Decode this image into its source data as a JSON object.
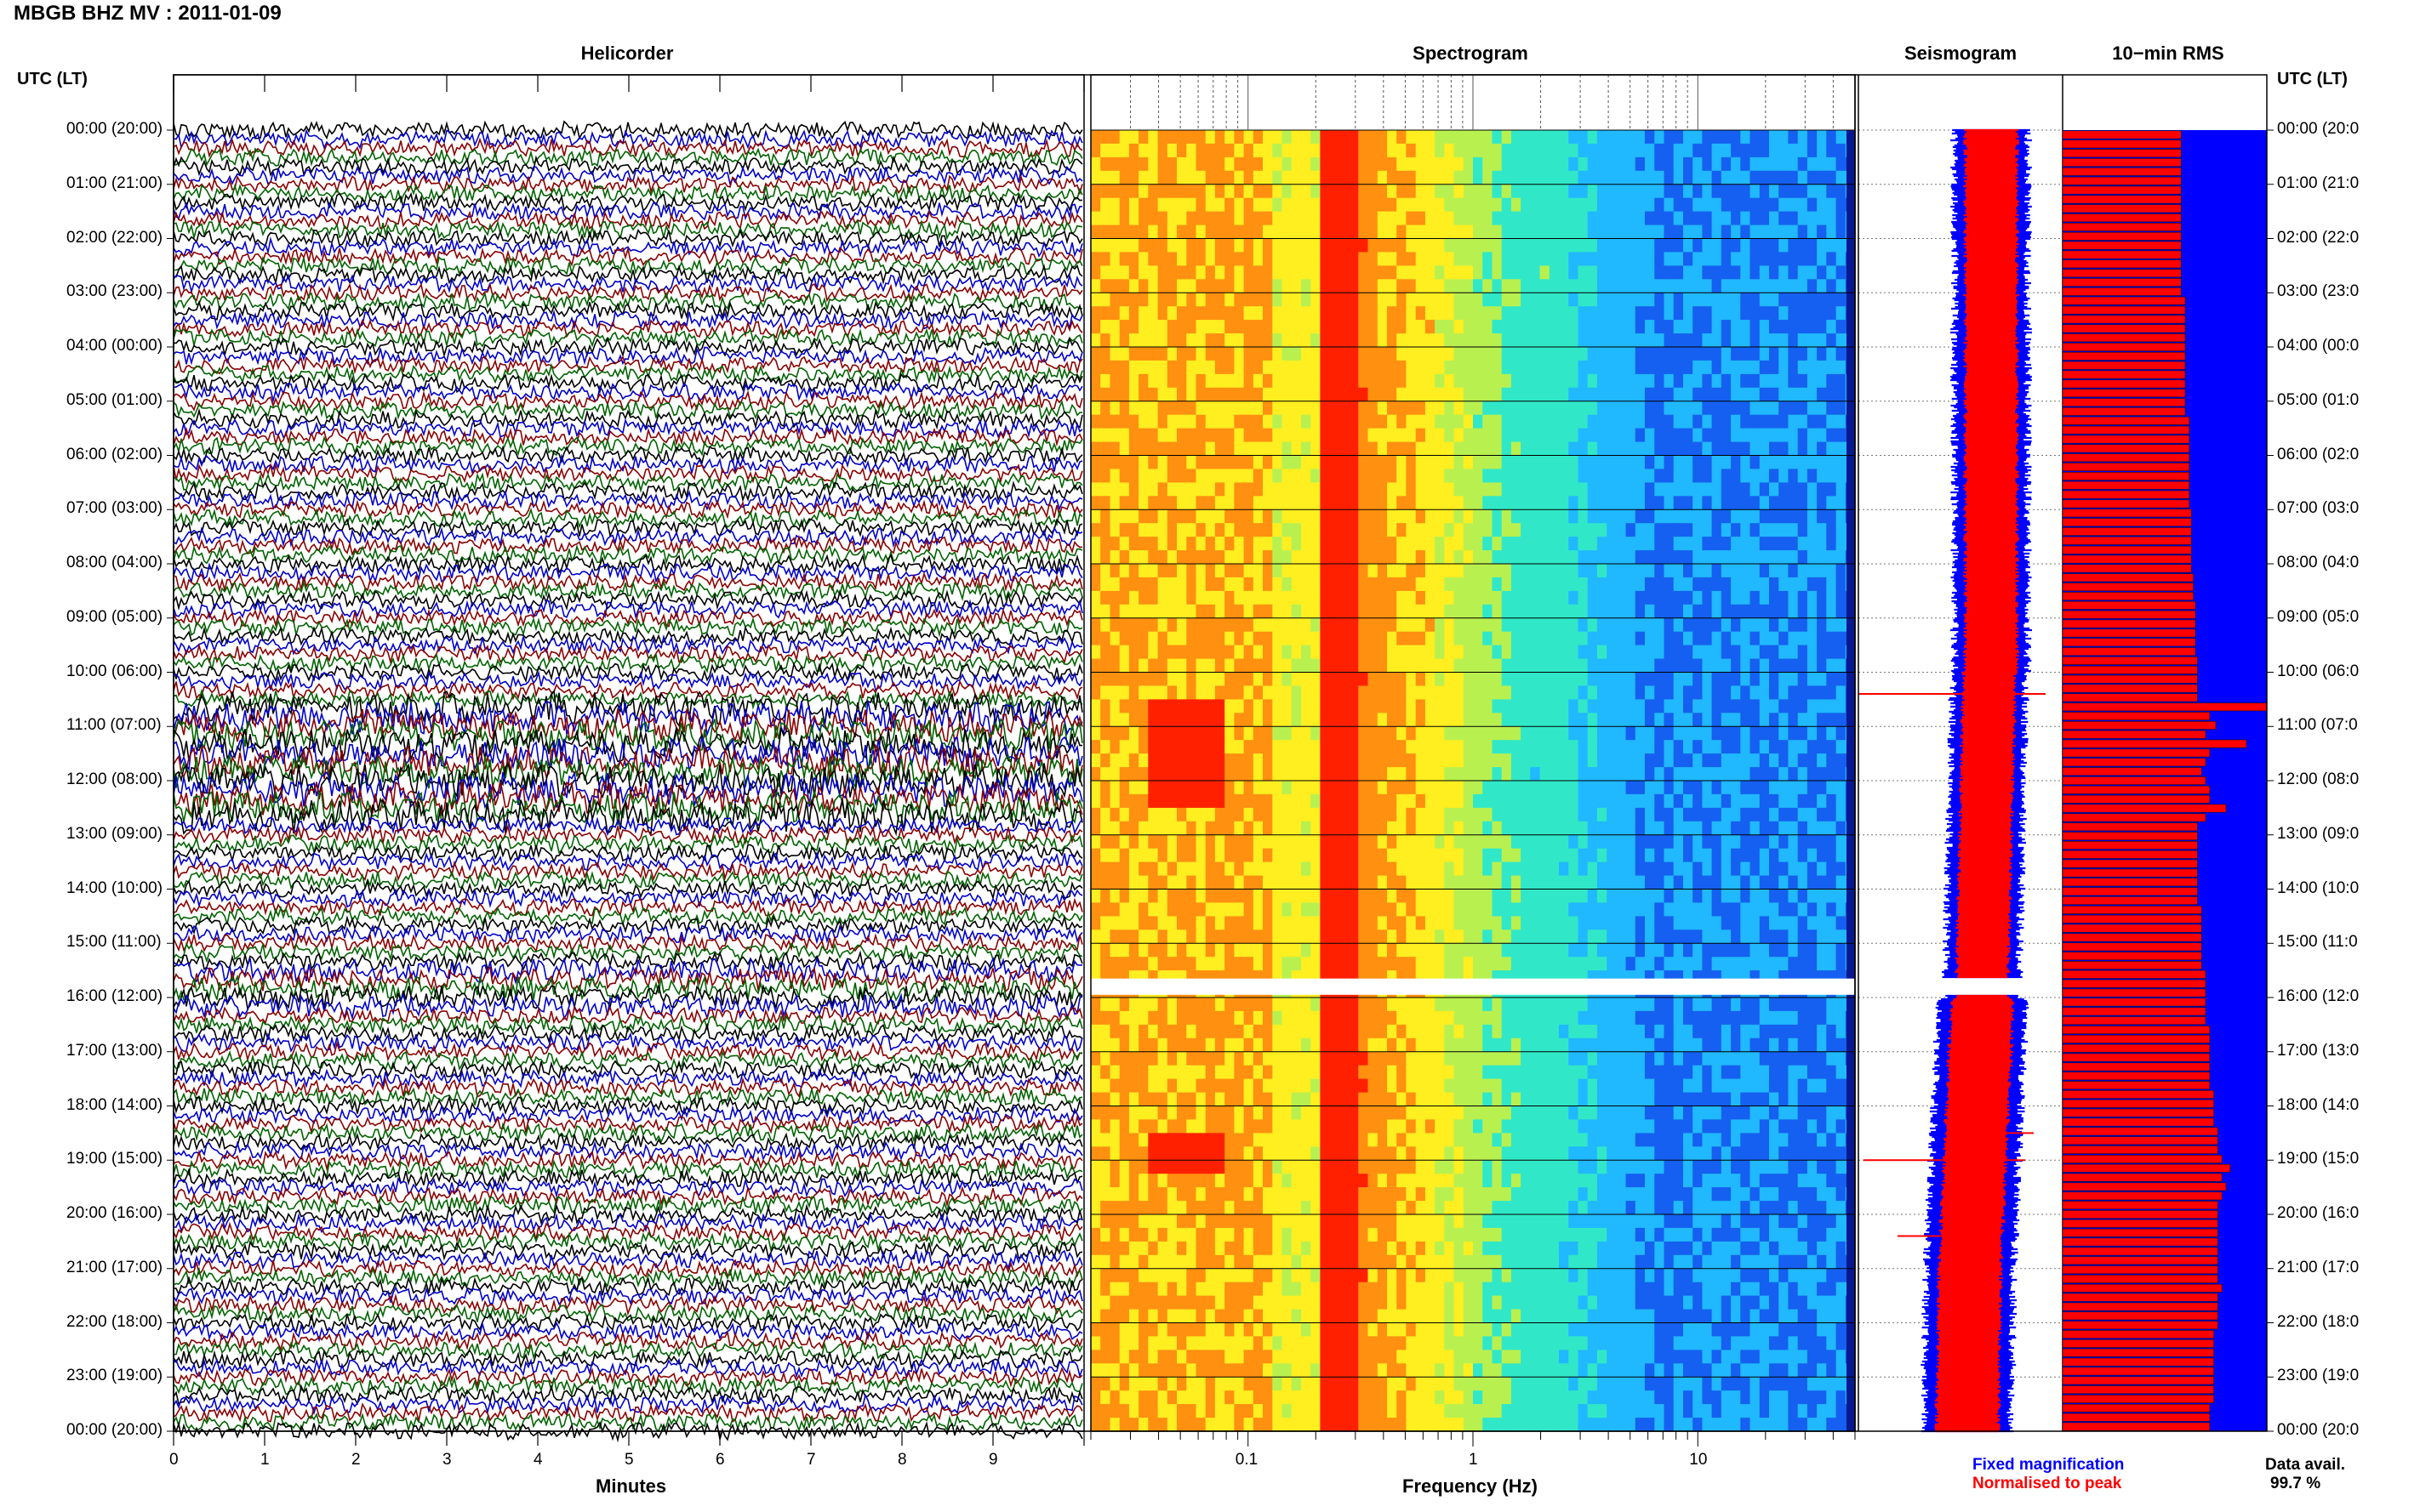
{
  "title": "MBGB BHZ MV : 2011-01-09",
  "panels": {
    "helicorder": "Helicorder",
    "spectrogram": "Spectrogram",
    "seismogram": "Seismogram",
    "rms": "10−min RMS"
  },
  "time_axis_header": "UTC (LT)",
  "time_labels": [
    "00:00 (20:00)",
    "01:00 (21:00)",
    "02:00 (22:00)",
    "03:00 (23:00)",
    "04:00 (00:00)",
    "05:00 (01:00)",
    "06:00 (02:00)",
    "07:00 (03:00)",
    "08:00 (04:00)",
    "09:00 (05:00)",
    "10:00 (06:00)",
    "11:00 (07:00)",
    "12:00 (08:00)",
    "13:00 (09:00)",
    "14:00 (10:00)",
    "15:00 (11:00)",
    "16:00 (12:00)",
    "17:00 (13:00)",
    "18:00 (14:00)",
    "19:00 (15:00)",
    "20:00 (16:00)",
    "21:00 (17:00)",
    "22:00 (18:00)",
    "23:00 (19:00)",
    "00:00 (20:00)"
  ],
  "right_time_labels": [
    "00:00 (20:0",
    "01:00 (21:0",
    "02:00 (22:0",
    "03:00 (23:0",
    "04:00 (00:0",
    "05:00 (01:0",
    "06:00 (02:0",
    "07:00 (03:0",
    "08:00 (04:0",
    "09:00 (05:0",
    "10:00 (06:0",
    "11:00 (07:0",
    "12:00 (08:0",
    "13:00 (09:0",
    "14:00 (10:0",
    "15:00 (11:0",
    "16:00 (12:0",
    "17:00 (13:0",
    "18:00 (14:0",
    "19:00 (15:0",
    "20:00 (16:0",
    "21:00 (17:0",
    "22:00 (18:0",
    "23:00 (19:0",
    "00:00 (20:0"
  ],
  "helicorder_axis": {
    "label": "Minutes",
    "ticks": [
      "0",
      "1",
      "2",
      "3",
      "4",
      "5",
      "6",
      "7",
      "8",
      "9"
    ],
    "range": [
      0,
      10
    ]
  },
  "spectrogram_axis": {
    "label": "Frequency (Hz)",
    "scale": "log",
    "ticks": [
      "0.1",
      "1",
      "10"
    ],
    "range": [
      0.02,
      50
    ]
  },
  "legend": {
    "fixed": "Fixed magnification",
    "normalised": "Normalised to peak",
    "fixed_color": "#0000ff",
    "normalised_color": "#ff0000"
  },
  "data_avail": {
    "label": "Data avail.",
    "value": "99.7 %"
  },
  "colors": {
    "trace_cycle": [
      "#000000",
      "#0000cc",
      "#8b0000",
      "#006400"
    ],
    "rms_bar": "#ff0000",
    "rms_background": "#0000ff",
    "spectro_low": "#0a2ecc",
    "spectro_high": "#ff2000"
  },
  "chart_data": [
    {
      "type": "heatmap",
      "name_hint": "spectrogram",
      "x_scale": "log",
      "xlim": [
        0.02,
        50
      ],
      "ylim_hours_utc": [
        0,
        24
      ],
      "data_gap_hours": [
        15.65,
        15.95
      ],
      "peak_band_hz": [
        0.2,
        0.3
      ],
      "tremor_episodes": [
        {
          "start_hour": 10.4,
          "end_hour": 12.6,
          "freq_hz": [
            0.035,
            0.07
          ]
        },
        {
          "start_hour": 18.3,
          "end_hour": 19.3,
          "freq_hz": [
            0.035,
            0.07
          ]
        }
      ]
    },
    {
      "type": "bar",
      "name_hint": "10-min RMS",
      "interval_minutes": 10,
      "values_rel": [
        0.58,
        0.58,
        0.58,
        0.58,
        0.58,
        0.58,
        0.58,
        0.58,
        0.58,
        0.58,
        0.58,
        0.58,
        0.58,
        0.58,
        0.58,
        0.58,
        0.58,
        0.58,
        0.6,
        0.6,
        0.6,
        0.6,
        0.6,
        0.6,
        0.6,
        0.6,
        0.6,
        0.6,
        0.6,
        0.6,
        0.6,
        0.62,
        0.62,
        0.62,
        0.62,
        0.62,
        0.62,
        0.62,
        0.62,
        0.62,
        0.62,
        0.63,
        0.63,
        0.63,
        0.63,
        0.63,
        0.63,
        0.63,
        0.64,
        0.64,
        0.64,
        0.65,
        0.65,
        0.65,
        0.65,
        0.65,
        0.65,
        0.66,
        0.66,
        0.66,
        0.66,
        0.66,
        1.0,
        0.72,
        0.75,
        0.7,
        0.9,
        0.72,
        0.7,
        0.68,
        0.7,
        0.72,
        0.72,
        0.8,
        0.7,
        0.66,
        0.66,
        0.66,
        0.66,
        0.66,
        0.66,
        0.66,
        0.66,
        0.66,
        0.68,
        0.68,
        0.68,
        0.68,
        0.68,
        0.68,
        0.68,
        0.7,
        0.7,
        0.7,
        0.7,
        0.7,
        0.7,
        0.72,
        0.72,
        0.72,
        0.72,
        0.72,
        0.72,
        0.72,
        0.74,
        0.74,
        0.74,
        0.74,
        0.76,
        0.76,
        0.76,
        0.78,
        0.82,
        0.78,
        0.8,
        0.78,
        0.76,
        0.76,
        0.76,
        0.76,
        0.76,
        0.76,
        0.76,
        0.76,
        0.76,
        0.78,
        0.76,
        0.76,
        0.76,
        0.76,
        0.74,
        0.74,
        0.74,
        0.74,
        0.74,
        0.74,
        0.74,
        0.74,
        0.72,
        0.72,
        0.72
      ]
    }
  ]
}
